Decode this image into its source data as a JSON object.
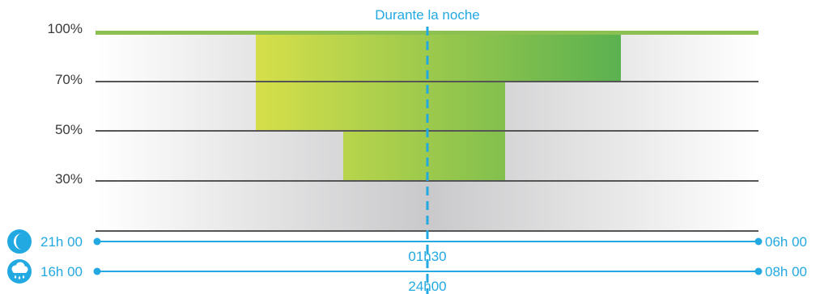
{
  "title": "Durante la noche",
  "levels": [
    "100%",
    "70%",
    "50%",
    "30%"
  ],
  "moon_row": {
    "icon": "moon-icon",
    "start": "21h 00",
    "middle": "01h30",
    "end": "06h 00"
  },
  "rain_row": {
    "icon": "rain-cloud-icon",
    "start": "16h 00",
    "middle": "24h00",
    "end": "08h 00"
  },
  "colors": {
    "accent": "#23a9e1",
    "green_light": "#d6df4a",
    "green_dark": "#5bb150",
    "top_line": "#8cc152",
    "level_line": "#555555",
    "background_center": "#c9c9cb"
  }
}
